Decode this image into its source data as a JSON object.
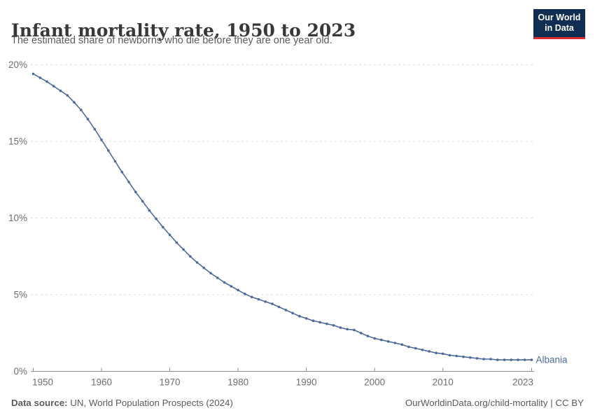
{
  "header": {
    "title": "Infant mortality rate, 1950 to 2023",
    "subtitle": "The estimated share of newborns who die before they are one year old.",
    "logo_line1": "Our World",
    "logo_line2": "in Data"
  },
  "colors": {
    "series_blue": "#4c6a9c",
    "title_text": "#383838",
    "muted_text": "#5b5b5b",
    "tick_text": "#6e6e6e",
    "grid_line": "#dcdcdc",
    "axis_line": "#8f8f8f",
    "logo_bg": "#0f2e52",
    "logo_accent": "#dc2c34"
  },
  "chart_data": {
    "type": "line",
    "title": "Infant mortality rate, 1950 to 2023",
    "xlabel": "",
    "ylabel": "",
    "ylim": [
      0,
      20
    ],
    "xlim": [
      1950,
      2023
    ],
    "grid": "horizontal-dashed",
    "legend_position": "end-of-line-label",
    "x_ticks": [
      1950,
      1960,
      1970,
      1980,
      1990,
      2000,
      2010,
      2023
    ],
    "y_ticks": [
      {
        "value": 0,
        "label": "0%"
      },
      {
        "value": 5,
        "label": "5%"
      },
      {
        "value": 10,
        "label": "10%"
      },
      {
        "value": 15,
        "label": "15%"
      },
      {
        "value": 20,
        "label": "20%"
      }
    ],
    "x": [
      1950,
      1951,
      1952,
      1953,
      1954,
      1955,
      1956,
      1957,
      1958,
      1959,
      1960,
      1961,
      1962,
      1963,
      1964,
      1965,
      1966,
      1967,
      1968,
      1969,
      1970,
      1971,
      1972,
      1973,
      1974,
      1975,
      1976,
      1977,
      1978,
      1979,
      1980,
      1981,
      1982,
      1983,
      1984,
      1985,
      1986,
      1987,
      1988,
      1989,
      1990,
      1991,
      1992,
      1993,
      1994,
      1995,
      1996,
      1997,
      1998,
      1999,
      2000,
      2001,
      2002,
      2003,
      2004,
      2005,
      2006,
      2007,
      2008,
      2009,
      2010,
      2011,
      2012,
      2013,
      2014,
      2015,
      2016,
      2017,
      2018,
      2019,
      2020,
      2021,
      2022,
      2023
    ],
    "series": [
      {
        "name": "Albania",
        "color": "#4c6a9c",
        "unit": "%",
        "values": [
          19.4,
          19.15,
          18.9,
          18.6,
          18.3,
          18.0,
          17.55,
          17.05,
          16.45,
          15.8,
          15.1,
          14.4,
          13.7,
          13.0,
          12.35,
          11.7,
          11.1,
          10.5,
          9.95,
          9.4,
          8.9,
          8.4,
          7.95,
          7.5,
          7.1,
          6.75,
          6.4,
          6.1,
          5.8,
          5.55,
          5.3,
          5.05,
          4.85,
          4.7,
          4.55,
          4.4,
          4.2,
          4.0,
          3.8,
          3.6,
          3.45,
          3.3,
          3.2,
          3.1,
          3.0,
          2.85,
          2.75,
          2.7,
          2.5,
          2.3,
          2.15,
          2.05,
          1.95,
          1.85,
          1.75,
          1.6,
          1.5,
          1.4,
          1.3,
          1.2,
          1.15,
          1.05,
          1.0,
          0.95,
          0.9,
          0.85,
          0.8,
          0.8,
          0.75,
          0.75,
          0.75,
          0.75,
          0.75,
          0.75
        ]
      }
    ]
  },
  "footer": {
    "source_label": "Data source:",
    "source_text": " UN, World Population Prospects (2024)",
    "right_text": "OurWorldinData.org/child-mortality | CC BY"
  }
}
